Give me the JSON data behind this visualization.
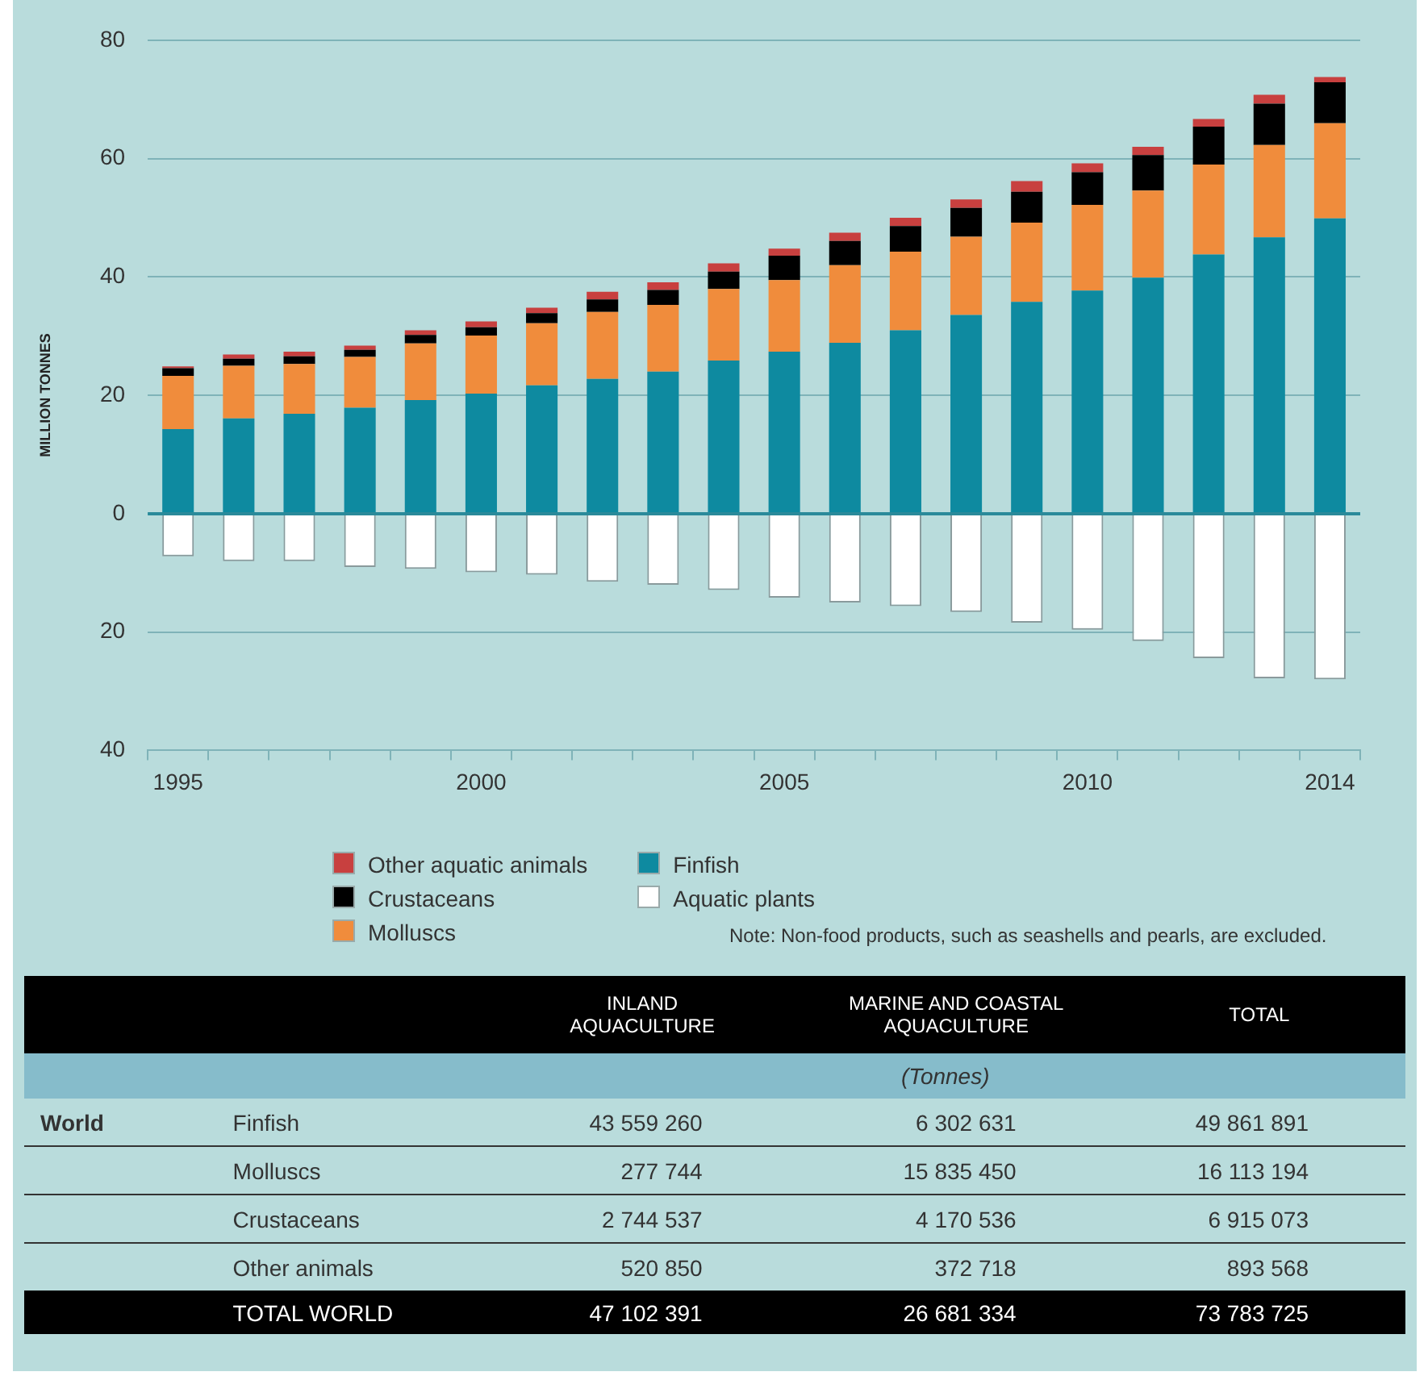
{
  "chart_data": [
    {
      "type": "bar",
      "stacked": true,
      "ylabel": "MILLION TONNES",
      "categories": [
        "1995",
        null,
        null,
        null,
        null,
        "2000",
        null,
        null,
        null,
        null,
        "2005",
        null,
        null,
        null,
        null,
        "2010",
        null,
        null,
        null,
        "2014"
      ],
      "series": [
        {
          "name": "Finfish",
          "color": "#0e8aa0",
          "values": [
            14.3,
            16.1,
            16.9,
            17.9,
            19.2,
            20.3,
            21.7,
            22.8,
            24.0,
            25.9,
            27.4,
            28.9,
            31.0,
            33.6,
            35.8,
            37.7,
            39.9,
            43.8,
            46.7,
            49.9
          ]
        },
        {
          "name": "Molluscs",
          "color": "#f08c3c",
          "values": [
            9.0,
            8.9,
            8.4,
            8.6,
            9.6,
            9.8,
            10.5,
            11.3,
            11.3,
            12.1,
            12.1,
            13.1,
            13.3,
            13.2,
            13.4,
            14.5,
            14.7,
            15.2,
            15.6,
            16.1
          ]
        },
        {
          "name": "Crustaceans",
          "color": "#000000",
          "values": [
            1.3,
            1.2,
            1.3,
            1.2,
            1.4,
            1.4,
            1.7,
            2.1,
            2.5,
            2.9,
            4.1,
            4.1,
            4.3,
            4.9,
            5.2,
            5.5,
            6.0,
            6.4,
            7.0,
            6.9
          ]
        },
        {
          "name": "Other aquatic animals",
          "color": "#c8403f",
          "values": [
            0.3,
            0.7,
            0.8,
            0.7,
            0.8,
            1.0,
            0.9,
            1.3,
            1.3,
            1.4,
            1.2,
            1.4,
            1.4,
            1.4,
            1.8,
            1.5,
            1.4,
            1.3,
            1.5,
            0.9
          ]
        },
        {
          "name": "Aquatic plants",
          "color": "#ffffff",
          "values": [
            -7.2,
            -8.0,
            -8.0,
            -9.0,
            -9.3,
            -9.9,
            -10.3,
            -11.5,
            -12.0,
            -12.9,
            -14.2,
            -15.0,
            -15.6,
            -16.6,
            -18.4,
            -19.6,
            -21.5,
            -24.4,
            -27.8,
            -28.0
          ]
        }
      ],
      "ylim": [
        -40,
        80
      ],
      "yticks": [
        {
          "value": -40,
          "label": "40"
        },
        {
          "value": -20,
          "label": "20"
        },
        0,
        20,
        40,
        60,
        80
      ],
      "grid": "y",
      "legend": "bottom",
      "ref_lines": [
        {
          "axis": "y",
          "value": 0,
          "color": "#2a8a9a"
        }
      ],
      "annotations": [
        "Note: Non-food products, such as seashells and pearls, are excluded."
      ]
    },
    {
      "type": "other",
      "subtitle": "(Tonnes)",
      "annotations": [
        "World"
      ],
      "data_labels": true,
      "categories": [
        "INLAND AQUACULTURE",
        "MARINE AND COASTAL AQUACULTURE",
        "TOTAL"
      ],
      "series": [
        {
          "name": "Finfish",
          "values": [
            43559260,
            6302631,
            49861891
          ]
        },
        {
          "name": "Molluscs",
          "values": [
            277744,
            15835450,
            16113194
          ]
        },
        {
          "name": "Crustaceans",
          "values": [
            2744537,
            4170536,
            6915073
          ]
        },
        {
          "name": "Other animals",
          "values": [
            520850,
            372718,
            893568
          ]
        },
        {
          "name": "TOTAL WORLD",
          "values": [
            47102391,
            26681334,
            73783725
          ]
        }
      ]
    }
  ]
}
